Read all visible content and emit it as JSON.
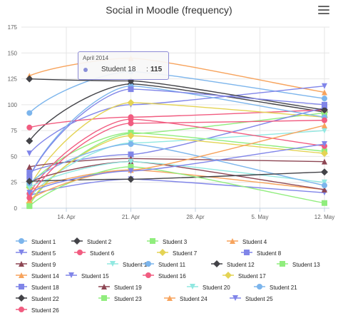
{
  "chart_title": "Social in Moodle (frequency)",
  "menu_icon": "hamburger-menu-icon",
  "chart_data": {
    "type": "line",
    "title": "Social in Moodle (frequency)",
    "xlabel": "",
    "ylabel": "",
    "ylim": [
      0,
      175
    ],
    "y_ticks": [
      "0",
      "25",
      "50",
      "75",
      "100",
      "125",
      "150",
      "175"
    ],
    "x": [
      "2014-04-10",
      "2014-04-21",
      "2014-05-12"
    ],
    "x_ticks": [
      {
        "date": "2014-04-14",
        "label": "14. Apr"
      },
      {
        "date": "2014-04-21",
        "label": "21. Apr"
      },
      {
        "date": "2014-04-28",
        "label": "28. Apr"
      },
      {
        "date": "2014-05-05",
        "label": "5. May"
      },
      {
        "date": "2014-05-12",
        "label": "12. May"
      }
    ],
    "grid": true,
    "legend_position": "bottom",
    "series": [
      {
        "name": "Student 1",
        "color": "#7cb5ec",
        "marker": "circle",
        "values": [
          92,
          132,
          106
        ]
      },
      {
        "name": "Student 2",
        "color": "#434348",
        "marker": "diamond",
        "values": [
          65,
          120,
          93
        ]
      },
      {
        "name": "Student 3",
        "color": "#90ed7d",
        "marker": "square",
        "values": [
          3,
          72,
          92
        ]
      },
      {
        "name": "Student 4",
        "color": "#f7a35c",
        "marker": "triangle",
        "values": [
          128,
          145,
          112
        ]
      },
      {
        "name": "Student 5",
        "color": "#8085e9",
        "marker": "triangle-down",
        "values": [
          53,
          100,
          118
        ]
      },
      {
        "name": "Student 6",
        "color": "#f15c80",
        "marker": "circle",
        "values": [
          78,
          88,
          95
        ]
      },
      {
        "name": "Student 7",
        "color": "#e4d354",
        "marker": "diamond",
        "values": [
          20,
          102,
          88
        ]
      },
      {
        "name": "Student 8",
        "color": "#8085e8",
        "marker": "square",
        "values": [
          35,
          52,
          97
        ]
      },
      {
        "name": "Student 9",
        "color": "#8d4653",
        "marker": "triangle",
        "values": [
          40,
          48,
          45
        ]
      },
      {
        "name": "Student 10",
        "color": "#91e8e1",
        "marker": "triangle-down",
        "values": [
          10,
          63,
          75
        ]
      },
      {
        "name": "Student 11",
        "color": "#7cb5ec",
        "marker": "circle",
        "values": [
          30,
          118,
          88
        ]
      },
      {
        "name": "Student 12",
        "color": "#434348",
        "marker": "diamond",
        "values": [
          125,
          123,
          95
        ]
      },
      {
        "name": "Student 13",
        "color": "#90ed7d",
        "marker": "square",
        "values": [
          22,
          73,
          55
        ]
      },
      {
        "name": "Student 14",
        "color": "#f7a35c",
        "marker": "triangle",
        "values": [
          17,
          37,
          18
        ]
      },
      {
        "name": "Student 15",
        "color": "#8085e9",
        "marker": "triangle-down",
        "values": [
          12,
          28,
          15
        ]
      },
      {
        "name": "Student 16",
        "color": "#f15c80",
        "marker": "circle",
        "values": [
          14,
          86,
          60
        ]
      },
      {
        "name": "Student 17",
        "color": "#e4d354",
        "marker": "diamond",
        "values": [
          5,
          70,
          53
        ]
      },
      {
        "name": "Student 18",
        "color": "#8085e8",
        "marker": "square",
        "values": [
          30,
          115,
          100
        ]
      },
      {
        "name": "Student 19",
        "color": "#8d4653",
        "marker": "triangle",
        "values": [
          25,
          45,
          18
        ]
      },
      {
        "name": "Student 20",
        "color": "#91e8e1",
        "marker": "triangle-down",
        "values": [
          20,
          45,
          25
        ]
      },
      {
        "name": "Student 21",
        "color": "#7cb5ec",
        "marker": "circle",
        "values": [
          24,
          62,
          22
        ]
      },
      {
        "name": "Student 22",
        "color": "#434348",
        "marker": "diamond",
        "values": [
          26,
          28,
          35
        ]
      },
      {
        "name": "Student 23",
        "color": "#90ed7d",
        "marker": "square",
        "values": [
          2,
          40,
          5
        ]
      },
      {
        "name": "Student 24",
        "color": "#f7a35c",
        "marker": "triangle",
        "values": [
          8,
          37,
          80
        ]
      },
      {
        "name": "Student 25",
        "color": "#8085e9",
        "marker": "triangle-down",
        "values": [
          15,
          36,
          62
        ]
      },
      {
        "name": "Student 26",
        "color": "#f15c80",
        "marker": "circle",
        "values": [
          10,
          82,
          85
        ]
      }
    ]
  },
  "tooltip": {
    "date": "April 2014",
    "series_name": "Student 18",
    "separator": ":",
    "value": "115"
  }
}
